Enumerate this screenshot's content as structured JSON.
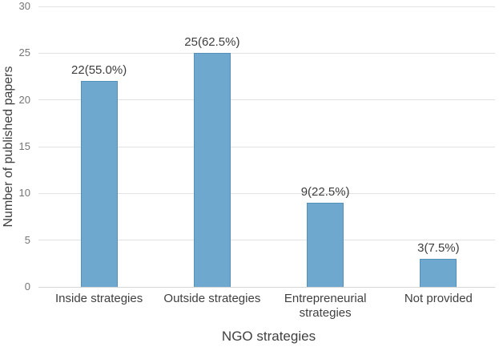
{
  "figure": {
    "background": "#ffffff"
  },
  "chart_data": {
    "type": "bar",
    "title": "",
    "xlabel": "NGO strategies",
    "ylabel": "Number of published papers",
    "categories": [
      "Inside strategies",
      "Outside strategies",
      "Entrepreneurial strategies",
      "Not provided"
    ],
    "values": [
      22,
      25,
      9,
      3
    ],
    "bar_labels": [
      "22(55.0%)",
      "25(62.5%)",
      "9(22.5%)",
      "3(7.5%)"
    ],
    "ylim": [
      0,
      30
    ],
    "yticks": [
      0,
      5,
      10,
      15,
      20,
      25,
      30
    ],
    "grid": "horizontal",
    "legend": "none",
    "bar_color": "#6fa8ce",
    "bar_border_color": "#5590bc",
    "gridline_color": "#e2e2e2",
    "tick_label_color": "#757575",
    "text_color": "#404040"
  }
}
